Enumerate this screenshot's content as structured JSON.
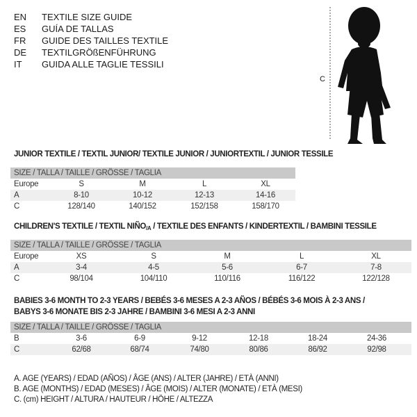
{
  "languages": [
    {
      "code": "EN",
      "text": "TEXTILE SIZE GUIDE"
    },
    {
      "code": "ES",
      "text": "GUÍA DE TALLAS"
    },
    {
      "code": "FR",
      "text": "GUIDE DES TAILLES TEXTILE"
    },
    {
      "code": "DE",
      "text": "TEXTILGRÖßENFÜHRUNG"
    },
    {
      "code": "IT",
      "text": "GUIDA ALLE TAGLIE TESSILI"
    }
  ],
  "figure": {
    "height_label": "C"
  },
  "junior": {
    "title": "JUNIOR TEXTILE / TEXTIL JUNIOR/ TEXTILE JUNIOR / JUNIORTEXTIL / JUNIOR TESSILE",
    "header": "SIZE / TALLA / TAILLE / GRÖSSE / TAGLIA",
    "rows": [
      {
        "label": "Europe",
        "values": [
          "S",
          "M",
          "L",
          "XL"
        ]
      },
      {
        "label": "A",
        "values": [
          "8-10",
          "10-12",
          "12-13",
          "14-16"
        ]
      },
      {
        "label": "C",
        "values": [
          "128/140",
          "140/152",
          "152/158",
          "158/170"
        ]
      }
    ]
  },
  "children": {
    "title_pre": "CHILDREN'S TEXTILE / TEXTIL NIÑO",
    "title_sub": "/A",
    "title_post": " / TEXTILE DES ENFANTS / KINDERTEXTIL / BAMBINI TESSILE",
    "header": "SIZE / TALLA / TAILLE / GRÖSSE / TAGLIA",
    "rows": [
      {
        "label": "Europe",
        "values": [
          "XS",
          "S",
          "M",
          "L",
          "XL"
        ]
      },
      {
        "label": "A",
        "values": [
          "3-4",
          "4-5",
          "5-6",
          "6-7",
          "7-8"
        ]
      },
      {
        "label": "C",
        "values": [
          "98/104",
          "104/110",
          "110/116",
          "116/122",
          "122/128"
        ]
      }
    ]
  },
  "babies": {
    "title_line1": "BABIES 3-6 MONTH TO 2-3 YEARS / BEBÉS 3-6 MESES A 2-3 AÑOS / BÉBÉS 3-6 MOIS À 2-3 ANS /",
    "title_line2": "BABYS 3-6 MONATE BIS 2-3 JAHRE / BAMBINI 3-6 MESI A 2-3 ANNI",
    "header": "SIZE / TALLA / TAILLE / GRÖSSE / TAGLIA",
    "rows": [
      {
        "label": "B",
        "values": [
          "3-6",
          "6-9",
          "9-12",
          "12-18",
          "18-24",
          "24-36"
        ]
      },
      {
        "label": "C",
        "values": [
          "62/68",
          "68/74",
          "74/80",
          "80/86",
          "86/92",
          "92/98"
        ]
      }
    ]
  },
  "legend": [
    "A. AGE (YEARS) / EDAD (AÑOS) / ÂGE (ANS) / ALTER (JAHRE) / ETÀ (ANNI)",
    "B. AGE (MONTHS) / EDAD (MESES) / ÂGE (MOIS) / ALTER (MONATE) / ETÀ (MESI)",
    "C. (cm) HEIGHT / ALTURA / HAUTEUR / HÖHE / ALTEZZA"
  ]
}
